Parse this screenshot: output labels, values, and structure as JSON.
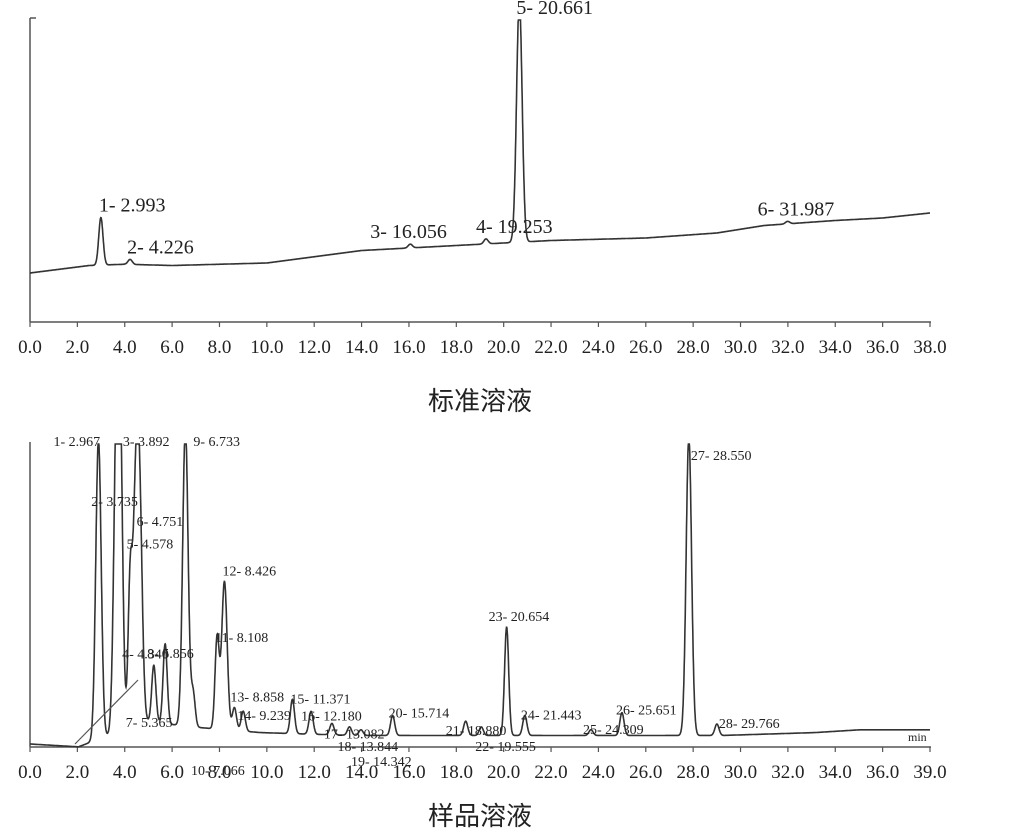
{
  "chart_data": [
    {
      "type": "line",
      "title": "标准溶液",
      "xlabel": "",
      "ylabel": "",
      "xlim": [
        0,
        38
      ],
      "x_ticks": [
        "0.0",
        "2.0",
        "4.0",
        "6.0",
        "8.0",
        "10.0",
        "12.0",
        "14.0",
        "16.0",
        "18.0",
        "20.0",
        "22.0",
        "24.0",
        "26.0",
        "28.0",
        "30.0",
        "32.0",
        "34.0",
        "36.0",
        "38.0"
      ],
      "peaks": [
        {
          "x": 2.993,
          "label": "1- 2.993",
          "height": 0.19
        },
        {
          "x": 4.226,
          "label": "2- 4.226",
          "height": 0.02
        },
        {
          "x": 16.056,
          "label": "3- 16.056",
          "height": 0.015
        },
        {
          "x": 19.253,
          "label": "4- 19.253",
          "height": 0.02
        },
        {
          "x": 20.661,
          "label": "5- 20.661",
          "height": 0.97
        },
        {
          "x": 31.987,
          "label": "6- 31.987",
          "height": 0.01
        }
      ],
      "baseline": [
        [
          0,
          0
        ],
        [
          2.5,
          0.03
        ],
        [
          4,
          0.035
        ],
        [
          6,
          0.03
        ],
        [
          10,
          0.04
        ],
        [
          14,
          0.09
        ],
        [
          18,
          0.11
        ],
        [
          22,
          0.13
        ],
        [
          26,
          0.14
        ],
        [
          29,
          0.16
        ],
        [
          31,
          0.19
        ],
        [
          34,
          0.21
        ],
        [
          36,
          0.22
        ],
        [
          38,
          0.24
        ]
      ]
    },
    {
      "type": "line",
      "title": "样品溶液",
      "xlabel": "min",
      "ylabel": "",
      "xlim": [
        0,
        39
      ],
      "x_ticks": [
        "0.0",
        "2.0",
        "4.0",
        "6.0",
        "8.0",
        "10.0",
        "12.0",
        "14.0",
        "16.0",
        "18.0",
        "20.0",
        "22.0",
        "24.0",
        "26.0",
        "28.0",
        "30.0",
        "32.0",
        "34.0",
        "36.0",
        "39.0"
      ],
      "peaks": [
        {
          "x": 2.967,
          "label": "1- 2.967",
          "height": 1.05
        },
        {
          "x": 3.735,
          "label": "2- 3.735",
          "height": 0.85
        },
        {
          "x": 3.892,
          "label": "3- 3.892",
          "height": 1.05
        },
        {
          "x": 4.34,
          "label": "4- 4.340",
          "height": 0.5
        },
        {
          "x": 4.578,
          "label": "5- 4.578",
          "height": 0.72
        },
        {
          "x": 4.751,
          "label": "6- 4.751",
          "height": 0.7
        },
        {
          "x": 5.365,
          "label": "7- 5.365",
          "height": 0.2
        },
        {
          "x": 5.856,
          "label": "8- 5.856",
          "height": 0.28
        },
        {
          "x": 6.733,
          "label": "9- 6.733",
          "height": 1.05
        },
        {
          "x": 7.066,
          "label": "10- 7.066",
          "height": 0.12
        },
        {
          "x": 8.108,
          "label": "11- 8.108",
          "height": 0.32
        },
        {
          "x": 8.426,
          "label": "12- 8.426",
          "height": 0.52
        },
        {
          "x": 8.858,
          "label": "13- 8.858",
          "height": 0.08
        },
        {
          "x": 9.239,
          "label": "14- 9.239",
          "height": 0.07
        },
        {
          "x": 11.371,
          "label": "15- 11.371",
          "height": 0.12
        },
        {
          "x": 12.18,
          "label": "16- 12.180",
          "height": 0.08
        },
        {
          "x": 13.082,
          "label": "17- 13.082",
          "height": 0.04
        },
        {
          "x": 13.844,
          "label": "18- 13.844",
          "height": 0.03
        },
        {
          "x": 14.342,
          "label": "19- 14.342",
          "height": 0.02
        },
        {
          "x": 15.714,
          "label": "20- 15.714",
          "height": 0.07
        },
        {
          "x": 18.88,
          "label": "21- 18.880",
          "height": 0.05
        },
        {
          "x": 19.555,
          "label": "22- 19.555",
          "height": 0.03
        },
        {
          "x": 20.654,
          "label": "23- 20.654",
          "height": 0.38
        },
        {
          "x": 21.443,
          "label": "24- 21.443",
          "height": 0.07
        },
        {
          "x": 24.309,
          "label": "25- 24.309",
          "height": 0.02
        },
        {
          "x": 25.651,
          "label": "26- 25.651",
          "height": 0.08
        },
        {
          "x": 28.55,
          "label": "27- 28.550",
          "height": 1.05
        },
        {
          "x": 29.766,
          "label": "28- 29.766",
          "height": 0.04
        }
      ],
      "baseline": [
        [
          0,
          0
        ],
        [
          2.1,
          -0.01
        ],
        [
          5,
          0.08
        ],
        [
          7,
          0.06
        ],
        [
          10,
          0.04
        ],
        [
          14,
          0.03
        ],
        [
          18,
          0.03
        ],
        [
          22,
          0.03
        ],
        [
          26,
          0.03
        ],
        [
          30,
          0.03
        ],
        [
          34,
          0.04
        ],
        [
          36,
          0.05
        ],
        [
          39,
          0.05
        ]
      ]
    }
  ]
}
